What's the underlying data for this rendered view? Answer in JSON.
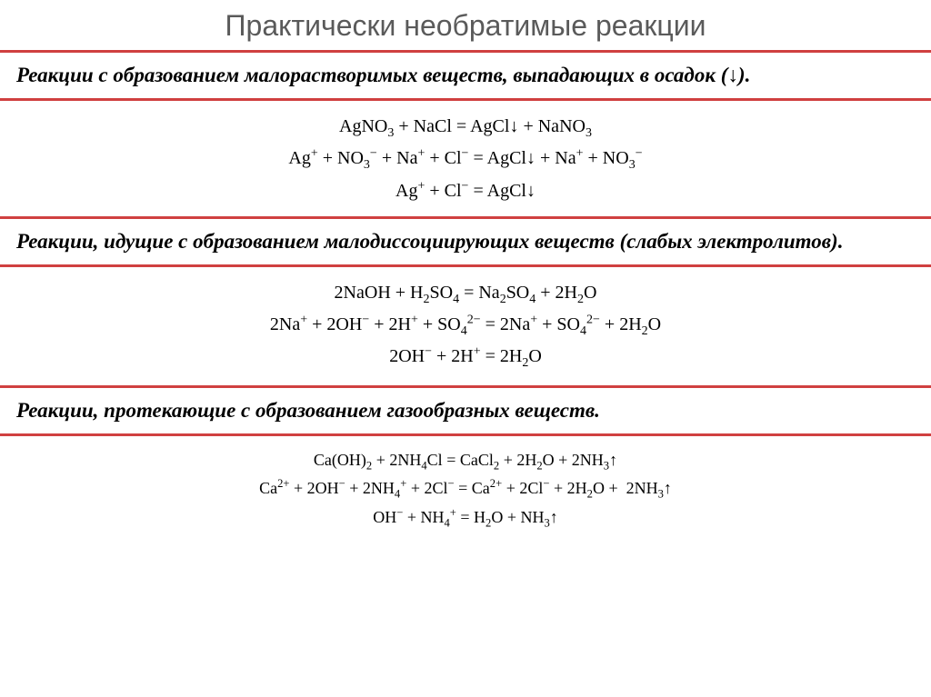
{
  "title": "Практически необратимые реакции",
  "colors": {
    "border": "#d04040",
    "title": "#5a5a5a",
    "text": "#000000",
    "bg": "#ffffff"
  },
  "font": {
    "title_size": 32,
    "section_size": 23,
    "equation_size": 20
  },
  "sections": {
    "s1": {
      "text": "Реакции с образованием малорастворимых веществ, выпадающих в осадок (↓)."
    },
    "s2": {
      "text": "Реакции, идущие с образованием малодиссоциирующих веществ (слабых электролитов)."
    },
    "s3": {
      "text": "Реакции, протекающие с образованием газообразных веществ."
    }
  },
  "equations": {
    "eq1a": "AgNO₃ + NaCl = AgCl↓ + NaNO₃",
    "eq1b": "Ag⁺ + NO₃⁻ + Na⁺ + Cl⁻ = AgCl↓ + Na⁺ + NO₃⁻",
    "eq1c": "Ag⁺ + Cl⁻ = AgCl↓",
    "eq2a": "2NaOH + H₂SO₄ = Na₂SO₄ + 2H₂O",
    "eq2b": "2Na⁺ + 2OH⁻ + 2H⁺ + SO₄²⁻ = 2Na⁺ + SO₄²⁻ + 2H₂O",
    "eq2c": "2OH⁻ + 2H⁺ = 2H₂O",
    "eq3a": "Ca(OH)₂ + 2NH₄Cl = CaCl₂ + 2H₂O + 2NH₃↑",
    "eq3b": "Ca²⁺ + 2OH⁻ + 2NH₄⁺ + 2Cl⁻ = Ca²⁺ + 2Cl⁻ + 2H₂O + 2NH₃↑",
    "eq3c": "OH⁻ + NH₄⁺ = H₂O + NH₃↑"
  }
}
